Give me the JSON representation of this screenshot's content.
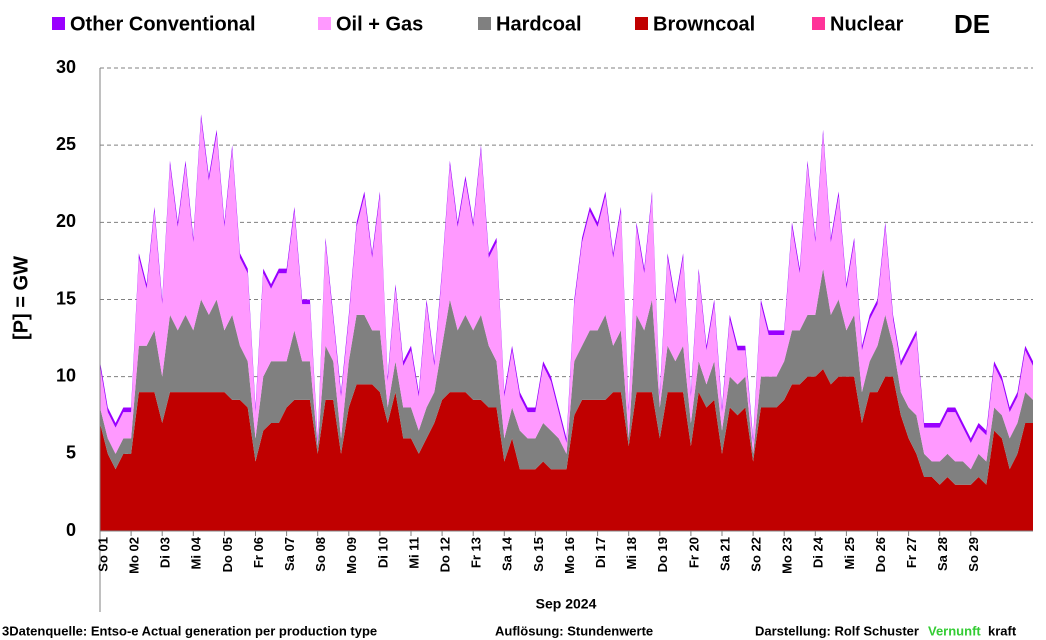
{
  "chart_data": {
    "type": "stacked_area",
    "title": "DE",
    "ylabel": "[P] =  GW",
    "xlabel": "Sep 2024",
    "annotations": [
      "3Datenquelle: Entso-e  Actual generation per production type",
      "Auflösung: Stundenwerte",
      "Darstellung:  Rolf Schuster",
      "Vernunft",
      "kraft"
    ],
    "xlim": [
      0,
      30
    ],
    "xticks": [
      {
        "value": 0,
        "label": "So 01"
      },
      {
        "value": 1,
        "label": "Mo 02"
      },
      {
        "value": 2,
        "label": "Di 03"
      },
      {
        "value": 3,
        "label": "Mi 04"
      },
      {
        "value": 4,
        "label": "Do 05"
      },
      {
        "value": 5,
        "label": "Fr 06"
      },
      {
        "value": 6,
        "label": "Sa 07"
      },
      {
        "value": 7,
        "label": "So 08"
      },
      {
        "value": 8,
        "label": "Mo 09"
      },
      {
        "value": 9,
        "label": "Di 10"
      },
      {
        "value": 10,
        "label": "Mi 11"
      },
      {
        "value": 11,
        "label": "Do 12"
      },
      {
        "value": 12,
        "label": "Fr 13"
      },
      {
        "value": 13,
        "label": "Sa 14"
      },
      {
        "value": 14,
        "label": "So 15"
      },
      {
        "value": 15,
        "label": "Mo 16"
      },
      {
        "value": 16,
        "label": "Di 17"
      },
      {
        "value": 17,
        "label": "Mi 18"
      },
      {
        "value": 18,
        "label": "Do 19"
      },
      {
        "value": 19,
        "label": "Fr 20"
      },
      {
        "value": 20,
        "label": "Sa 21"
      },
      {
        "value": 21,
        "label": "So 22"
      },
      {
        "value": 22,
        "label": "Mo 23"
      },
      {
        "value": 23,
        "label": "Di 24"
      },
      {
        "value": 24,
        "label": "Mi 25"
      },
      {
        "value": 25,
        "label": "Do 26"
      },
      {
        "value": 26,
        "label": "Fr 27"
      },
      {
        "value": 27,
        "label": "Sa 28"
      },
      {
        "value": 28,
        "label": "So 29"
      }
    ],
    "ylim": [
      0,
      30
    ],
    "yticks": [
      0,
      5,
      10,
      15,
      20,
      25,
      30
    ],
    "grid": true,
    "legend": "top",
    "x": [
      0,
      0.25,
      0.5,
      0.75,
      1,
      1.25,
      1.5,
      1.75,
      2,
      2.25,
      2.5,
      2.75,
      3,
      3.25,
      3.5,
      3.75,
      4,
      4.25,
      4.5,
      4.75,
      5,
      5.25,
      5.5,
      5.75,
      6,
      6.25,
      6.5,
      6.75,
      7,
      7.25,
      7.5,
      7.75,
      8,
      8.25,
      8.5,
      8.75,
      9,
      9.25,
      9.5,
      9.75,
      10,
      10.25,
      10.5,
      10.75,
      11,
      11.25,
      11.5,
      11.75,
      12,
      12.25,
      12.5,
      12.75,
      13,
      13.25,
      13.5,
      13.75,
      14,
      14.25,
      14.5,
      14.75,
      15,
      15.25,
      15.5,
      15.75,
      16,
      16.25,
      16.5,
      16.75,
      17,
      17.25,
      17.5,
      17.75,
      18,
      18.25,
      18.5,
      18.75,
      19,
      19.25,
      19.5,
      19.75,
      20,
      20.25,
      20.5,
      20.75,
      21,
      21.25,
      21.5,
      21.75,
      22,
      22.25,
      22.5,
      22.75,
      23,
      23.25,
      23.5,
      23.75,
      24,
      24.25,
      24.5,
      24.75,
      25,
      25.25,
      25.5,
      25.75,
      26,
      26.25,
      26.5,
      26.75,
      27,
      27.25,
      27.5,
      27.75,
      28,
      28.25,
      28.5,
      28.75,
      29,
      29.25,
      29.5,
      29.75,
      30
    ],
    "series": [
      {
        "name": "Other Conventional",
        "color": "#9a00ff",
        "values": [
          0.3,
          0.3,
          0.3,
          0.3,
          0.3,
          0.3,
          0.3,
          0.3,
          0.3,
          0.3,
          0.3,
          0.3,
          0.3,
          0.3,
          0.3,
          0.3,
          0.3,
          0.3,
          0.3,
          0.3,
          0.3,
          0.3,
          0.3,
          0.3,
          0.3,
          0.3,
          0.3,
          0.3,
          0.3,
          0.3,
          0.3,
          0.3,
          0.3,
          0.3,
          0.3,
          0.3,
          0.3,
          0.3,
          0.3,
          0.3,
          0.3,
          0.3,
          0.3,
          0.3,
          0.3,
          0.3,
          0.3,
          0.3,
          0.3,
          0.3,
          0.3,
          0.3,
          0.3,
          0.3,
          0.3,
          0.3,
          0.3,
          0.3,
          0.3,
          0.3,
          0.3,
          0.3,
          0.3,
          0.3,
          0.3,
          0.3,
          0.3,
          0.3,
          0.3,
          0.3,
          0.3,
          0.3,
          0.3,
          0.3,
          0.3,
          0.3,
          0.3,
          0.3,
          0.3,
          0.3,
          0.3,
          0.3,
          0.3,
          0.3,
          0.3,
          0.3,
          0.3,
          0.3,
          0.3,
          0.3,
          0.3,
          0.3,
          0.3,
          0.3,
          0.3,
          0.3,
          0.3,
          0.3,
          0.3,
          0.3,
          0.3,
          0.3,
          0.3,
          0.3,
          0.3,
          0.3,
          0.3,
          0.3,
          0.3,
          0.3,
          0.3,
          0.3,
          0.3,
          0.3,
          0.3,
          0.3,
          0.3,
          0.3,
          0.3,
          0.3,
          0.3
        ]
      },
      {
        "name": "Oil + Gas",
        "color": "#ff99ff",
        "values": [
          2.7,
          1.7,
          1.7,
          1.7,
          1.7,
          5.7,
          3.7,
          7.7,
          4.7,
          9.7,
          6.7,
          9.7,
          5.7,
          11.7,
          8.7,
          10.7,
          6.7,
          10.7,
          5.7,
          5.7,
          1.7,
          6.7,
          4.7,
          5.7,
          5.7,
          7.7,
          3.7,
          3.7,
          0.2,
          6.7,
          2.7,
          2.7,
          2.7,
          5.7,
          7.7,
          4.7,
          8.7,
          1.7,
          4.7,
          2.7,
          3.7,
          2.2,
          6.7,
          1.7,
          4.7,
          8.7,
          6.7,
          8.7,
          6.7,
          10.7,
          5.7,
          7.7,
          2.7,
          3.7,
          2.2,
          1.7,
          1.7,
          3.7,
          3.2,
          1.7,
          0.7,
          3.7,
          6.7,
          7.7,
          6.7,
          7.7,
          5.7,
          7.7,
          1.7,
          5.7,
          3.7,
          6.7,
          0.7,
          5.7,
          3.7,
          5.7,
          1.7,
          5.7,
          2.2,
          3.7,
          1.2,
          3.7,
          2.2,
          1.7,
          0.7,
          4.7,
          2.7,
          2.7,
          1.7,
          6.7,
          3.7,
          9.7,
          4.7,
          8.7,
          4.7,
          6.7,
          2.7,
          4.7,
          2.7,
          2.7,
          2.7,
          5.7,
          1.7,
          1.7,
          3.7,
          5.2,
          1.7,
          2.2,
          2.2,
          2.7,
          3.2,
          2.2,
          1.7,
          1.7,
          1.7,
          2.7,
          2.2,
          1.7,
          1.7,
          2.7,
          2.2
        ]
      },
      {
        "name": "Hardcoal",
        "color": "#808080",
        "values": [
          1,
          1,
          1,
          1,
          1,
          3,
          3,
          4,
          3,
          5,
          4,
          5,
          4,
          6,
          5,
          6,
          4,
          5.5,
          3.5,
          3,
          1.5,
          3.5,
          4,
          4,
          3,
          4.5,
          2.5,
          2.5,
          0.5,
          3.5,
          2.5,
          1,
          3,
          4.5,
          4.5,
          3.5,
          4,
          1,
          2,
          2,
          2,
          1.5,
          2,
          2,
          3.5,
          6,
          4,
          5,
          4.5,
          5.5,
          4,
          3,
          1.5,
          2,
          2.5,
          2,
          2,
          2.5,
          2.5,
          2,
          1,
          3.5,
          3.5,
          4.5,
          4.5,
          5.5,
          3,
          4,
          0.5,
          5,
          4,
          6,
          2,
          3,
          2,
          3,
          1.5,
          2,
          1.5,
          2.5,
          1.5,
          2,
          2,
          2,
          0.5,
          2,
          2,
          2,
          2.5,
          3.5,
          3.5,
          4,
          4,
          6.5,
          4.5,
          5,
          3,
          4,
          2,
          2,
          3,
          4,
          2,
          1.5,
          2,
          2.5,
          1.5,
          1,
          1.5,
          1.5,
          1.5,
          1.5,
          1,
          1.5,
          1.5,
          1.5,
          1.5,
          2,
          2,
          2,
          1.5
        ]
      },
      {
        "name": "Browncoal",
        "color": "#c00000",
        "values": [
          7,
          5,
          4,
          5,
          5,
          9,
          9,
          9,
          7,
          9,
          9,
          9,
          9,
          9,
          9,
          9,
          9,
          8.5,
          8.5,
          8,
          4.5,
          6.5,
          7,
          7,
          8,
          8.5,
          8.5,
          8.5,
          5,
          8.5,
          8.5,
          5,
          8,
          9.5,
          9.5,
          9.5,
          9,
          7,
          9,
          6,
          6,
          5,
          6,
          7,
          8.5,
          9,
          9,
          9,
          8.5,
          8.5,
          8,
          8,
          4.5,
          6,
          4,
          4,
          4,
          4.5,
          4,
          4,
          4,
          7.5,
          8.5,
          8.5,
          8.5,
          8.5,
          9,
          9,
          5.5,
          9,
          9,
          9,
          6,
          9,
          9,
          9,
          5.5,
          9,
          8,
          8.5,
          5,
          8,
          7.5,
          8,
          4.5,
          8,
          8,
          8,
          8.5,
          9.5,
          9.5,
          10,
          10,
          10.5,
          9.5,
          10,
          10,
          10,
          7,
          9,
          9,
          10,
          10,
          7.5,
          6,
          5,
          3.5,
          3.5,
          3,
          3.5,
          3,
          3,
          3,
          3.5,
          3,
          6.5,
          6,
          4,
          5,
          7,
          7
        ]
      },
      {
        "name": "Nuclear",
        "color": "#ff3399",
        "values": [
          0,
          0,
          0,
          0,
          0,
          0,
          0,
          0,
          0,
          0,
          0,
          0,
          0,
          0,
          0,
          0,
          0,
          0,
          0,
          0,
          0,
          0,
          0,
          0,
          0,
          0,
          0,
          0,
          0,
          0,
          0,
          0,
          0,
          0,
          0,
          0,
          0,
          0,
          0,
          0,
          0,
          0,
          0,
          0,
          0,
          0,
          0,
          0,
          0,
          0,
          0,
          0,
          0,
          0,
          0,
          0,
          0,
          0,
          0,
          0,
          0,
          0,
          0,
          0,
          0,
          0,
          0,
          0,
          0,
          0,
          0,
          0,
          0,
          0,
          0,
          0,
          0,
          0,
          0,
          0,
          0,
          0,
          0,
          0,
          0,
          0,
          0,
          0,
          0,
          0,
          0,
          0,
          0,
          0,
          0,
          0,
          0,
          0,
          0,
          0,
          0,
          0,
          0,
          0,
          0,
          0,
          0,
          0,
          0,
          0,
          0,
          0,
          0,
          0,
          0,
          0,
          0,
          0,
          0,
          0,
          0
        ]
      }
    ]
  }
}
